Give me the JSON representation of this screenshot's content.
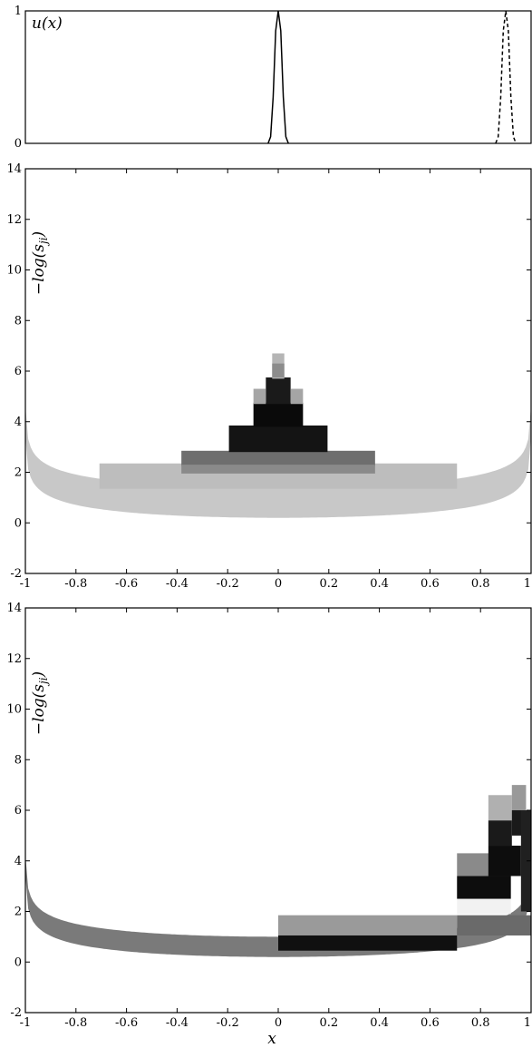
{
  "chart_data": [
    {
      "type": "line",
      "ylabel": "u(x)",
      "xlim": [
        -1,
        1
      ],
      "ylim": [
        0,
        1
      ],
      "yticks": [
        {
          "v": 0,
          "label": "0"
        },
        {
          "v": 1,
          "label": "1"
        }
      ],
      "grid": false,
      "series": [
        {
          "style": "solid",
          "color": "#000000",
          "x": [
            -0.04,
            -0.03,
            -0.02,
            -0.01,
            0.0,
            0.01,
            0.02,
            0.03,
            0.04
          ],
          "y": [
            0.0,
            0.05,
            0.35,
            0.85,
            1.0,
            0.85,
            0.35,
            0.05,
            0.0
          ]
        },
        {
          "style": "dashed",
          "color": "#000000",
          "x": [
            0.86,
            0.87,
            0.88,
            0.89,
            0.9,
            0.91,
            0.92,
            0.93,
            0.94
          ],
          "y": [
            0.0,
            0.05,
            0.35,
            0.85,
            1.0,
            0.85,
            0.35,
            0.05,
            0.0
          ]
        }
      ]
    },
    {
      "type": "heatmap",
      "ylabel": "−log(s_ji)",
      "xlim": [
        -1,
        1
      ],
      "ylim": [
        -2,
        14
      ],
      "xticks": [
        {
          "v": -1,
          "label": "-1"
        },
        {
          "v": -0.8,
          "label": "-0.8"
        },
        {
          "v": -0.6,
          "label": "-0.6"
        },
        {
          "v": -0.4,
          "label": "-0.4"
        },
        {
          "v": -0.2,
          "label": "-0.2"
        },
        {
          "v": 0,
          "label": "0"
        },
        {
          "v": 0.2,
          "label": "0.2"
        },
        {
          "v": 0.4,
          "label": "0.4"
        },
        {
          "v": 0.6,
          "label": "0.6"
        },
        {
          "v": 0.8,
          "label": "0.8"
        },
        {
          "v": 1,
          "label": "1"
        }
      ],
      "yticks": [
        {
          "v": -2,
          "label": "-2"
        },
        {
          "v": 0,
          "label": "0"
        },
        {
          "v": 2,
          "label": "2"
        },
        {
          "v": 4,
          "label": "4"
        },
        {
          "v": 6,
          "label": "6"
        },
        {
          "v": 8,
          "label": "8"
        },
        {
          "v": 10,
          "label": "10"
        },
        {
          "v": 12,
          "label": "12"
        },
        {
          "v": 14,
          "label": "14"
        }
      ],
      "curve_band": {
        "color": "#c8c8c8",
        "thickness": 1.2
      },
      "cells": [
        {
          "x0": -0.707,
          "x1": 0.707,
          "y0": 1.35,
          "y1": 2.35,
          "color": "#bdbdbd"
        },
        {
          "x0": -0.383,
          "x1": 0.383,
          "y0": 2.25,
          "y1": 2.85,
          "color": "#6e6e6e"
        },
        {
          "x0": -0.383,
          "x1": 0.383,
          "y0": 1.95,
          "y1": 2.3,
          "color": "#8a8a8a"
        },
        {
          "x0": -0.195,
          "x1": 0.195,
          "y0": 2.8,
          "y1": 3.85,
          "color": "#141414"
        },
        {
          "x0": -0.098,
          "x1": 0.098,
          "y0": 3.8,
          "y1": 4.75,
          "color": "#0a0a0a"
        },
        {
          "x0": -0.049,
          "x1": 0.049,
          "y0": 4.7,
          "y1": 5.75,
          "color": "#1a1a1a"
        },
        {
          "x0": -0.098,
          "x1": -0.049,
          "y0": 4.7,
          "y1": 5.3,
          "color": "#a5a5a5"
        },
        {
          "x0": 0.049,
          "x1": 0.098,
          "y0": 4.7,
          "y1": 5.3,
          "color": "#a5a5a5"
        },
        {
          "x0": -0.024,
          "x1": 0.024,
          "y0": 5.7,
          "y1": 6.7,
          "color": "#b5b5b5"
        },
        {
          "x0": -0.024,
          "x1": 0.024,
          "y0": 5.75,
          "y1": 6.3,
          "color": "#8c8c8c"
        }
      ]
    },
    {
      "type": "heatmap",
      "ylabel": "−log(s_ji)",
      "xlabel": "x",
      "xlim": [
        -1,
        1
      ],
      "ylim": [
        -2,
        14
      ],
      "xticks": [
        {
          "v": -1,
          "label": "-1"
        },
        {
          "v": -0.8,
          "label": "-0.8"
        },
        {
          "v": -0.6,
          "label": "-0.6"
        },
        {
          "v": -0.4,
          "label": "-0.4"
        },
        {
          "v": -0.2,
          "label": "-0.2"
        },
        {
          "v": 0,
          "label": "0"
        },
        {
          "v": 0.2,
          "label": "0.2"
        },
        {
          "v": 0.4,
          "label": "0.4"
        },
        {
          "v": 0.6,
          "label": "0.6"
        },
        {
          "v": 0.8,
          "label": "0.8"
        },
        {
          "v": 1,
          "label": "1"
        }
      ],
      "yticks": [
        {
          "v": -2,
          "label": "-2"
        },
        {
          "v": 0,
          "label": "0"
        },
        {
          "v": 2,
          "label": "2"
        },
        {
          "v": 4,
          "label": "4"
        },
        {
          "v": 6,
          "label": "6"
        },
        {
          "v": 8,
          "label": "8"
        },
        {
          "v": 10,
          "label": "10"
        },
        {
          "v": 12,
          "label": "12"
        },
        {
          "v": 14,
          "label": "14"
        }
      ],
      "curve_band": {
        "color": "#7a7a7a",
        "thickness": 0.8
      },
      "cells": [
        {
          "x0": 0.0,
          "x1": 0.707,
          "y0": 1.0,
          "y1": 1.85,
          "color": "#9a9a9a"
        },
        {
          "x0": 0.0,
          "x1": 0.707,
          "y0": 0.45,
          "y1": 1.05,
          "color": "#101010"
        },
        {
          "x0": 0.707,
          "x1": 1.0,
          "y0": 1.05,
          "y1": 1.85,
          "color": "#6a6a6a"
        },
        {
          "x0": 0.707,
          "x1": 0.92,
          "y0": 1.9,
          "y1": 2.5,
          "color": "#f2f2f2"
        },
        {
          "x0": 0.707,
          "x1": 0.92,
          "y0": 2.5,
          "y1": 3.4,
          "color": "#0d0d0d"
        },
        {
          "x0": 0.707,
          "x1": 0.92,
          "y0": 3.4,
          "y1": 4.3,
          "color": "#8a8a8a"
        },
        {
          "x0": 0.831,
          "x1": 0.96,
          "y0": 3.4,
          "y1": 4.6,
          "color": "#0d0d0d"
        },
        {
          "x0": 0.831,
          "x1": 0.924,
          "y0": 4.6,
          "y1": 5.6,
          "color": "#1a1a1a"
        },
        {
          "x0": 0.831,
          "x1": 0.924,
          "y0": 5.6,
          "y1": 6.6,
          "color": "#b0b0b0"
        },
        {
          "x0": 0.924,
          "x1": 0.98,
          "y0": 5.0,
          "y1": 6.0,
          "color": "#1a1a1a"
        },
        {
          "x0": 0.924,
          "x1": 0.98,
          "y0": 6.0,
          "y1": 7.0,
          "color": "#999999"
        },
        {
          "x0": 0.96,
          "x1": 1.0,
          "y0": 2.0,
          "y1": 6.0,
          "color": "#202020"
        }
      ]
    }
  ]
}
